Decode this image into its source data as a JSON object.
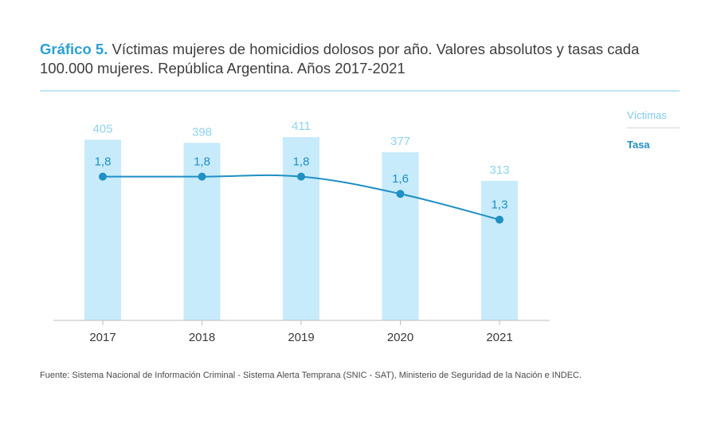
{
  "header": {
    "title_prefix": "Gráfico 5.",
    "title_text": " Víctimas mujeres de homicidios dolosos por año. Valores absolutos y tasas cada 100.000 mujeres. República Argentina. Años 2017-2021"
  },
  "legend": {
    "victimas": "Víctimas",
    "tasa": "Tasa"
  },
  "source": "Fuente: Sistema Nacional de Información Criminal - Sistema Alerta Temprana (SNIC - SAT), Ministerio de Seguridad de la Nación e INDEC.",
  "colors": {
    "bar": "#c7ebfa",
    "bar_label": "#8fd3f0",
    "line": "#1f8fc4",
    "line_label": "#1f8fc4",
    "accent": "#2aa0d6",
    "axis": "#bdbdbd"
  },
  "chart_data": {
    "type": "bar",
    "title": "Víctimas mujeres de homicidios dolosos por año. Valores absolutos y tasas cada 100.000 mujeres. República Argentina. Años 2017-2021",
    "categories": [
      "2017",
      "2018",
      "2019",
      "2020",
      "2021"
    ],
    "series": [
      {
        "name": "Víctimas",
        "type": "bar",
        "values": [
          405,
          398,
          411,
          377,
          313
        ],
        "labels": [
          "405",
          "398",
          "411",
          "377",
          "313"
        ]
      },
      {
        "name": "Tasa",
        "type": "line",
        "values": [
          1.8,
          1.8,
          1.8,
          1.6,
          1.3
        ],
        "labels": [
          "1,8",
          "1,8",
          "1,8",
          "1,6",
          "1,3"
        ]
      }
    ],
    "legend_position": "top-right",
    "grid": false
  }
}
